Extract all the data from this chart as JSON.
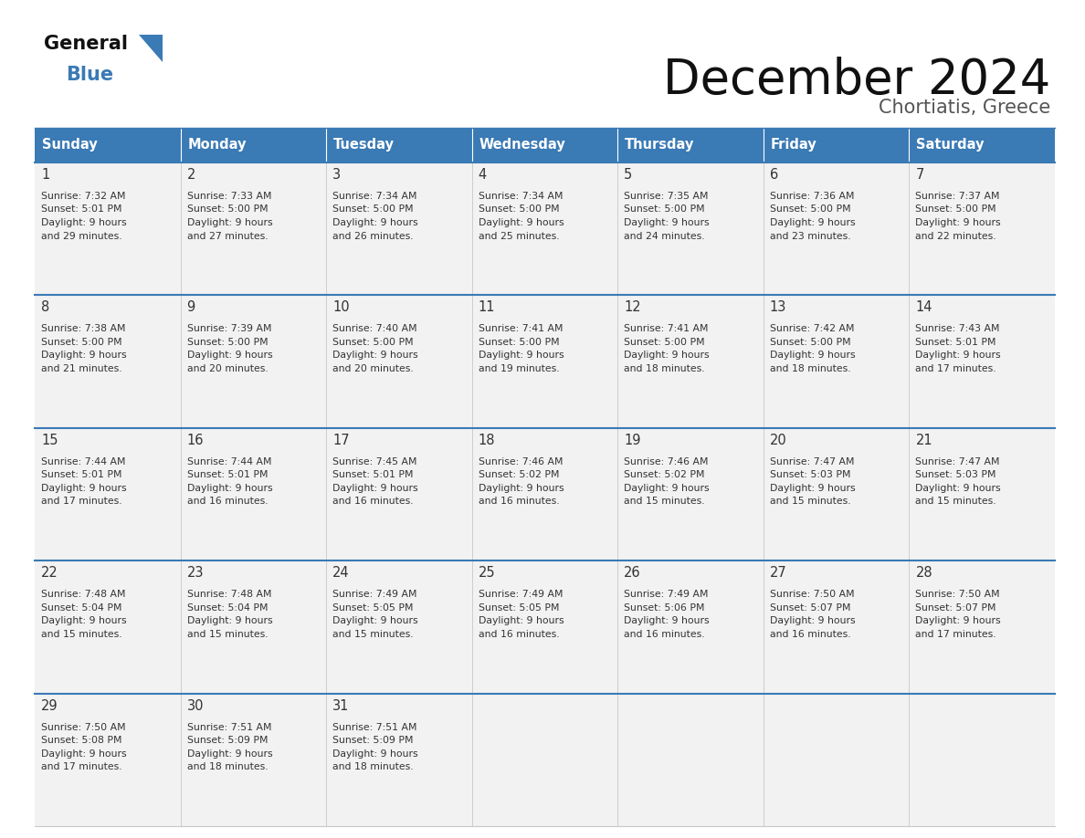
{
  "title": "December 2024",
  "subtitle": "Chortiatis, Greece",
  "header_color": "#3a7ab5",
  "header_text_color": "#ffffff",
  "day_names": [
    "Sunday",
    "Monday",
    "Tuesday",
    "Wednesday",
    "Thursday",
    "Friday",
    "Saturday"
  ],
  "cell_bg_color": "#f2f2f2",
  "divider_color": "#3a7ab5",
  "day_number_color": "#333333",
  "text_color": "#333333",
  "logo_general_color": "#1a1a1a",
  "logo_blue_color": "#3a7ab5",
  "weeks": [
    [
      {
        "day": 1,
        "sunrise": "7:32 AM",
        "sunset": "5:01 PM",
        "daylight_hrs": 9,
        "daylight_min": 29
      },
      {
        "day": 2,
        "sunrise": "7:33 AM",
        "sunset": "5:00 PM",
        "daylight_hrs": 9,
        "daylight_min": 27
      },
      {
        "day": 3,
        "sunrise": "7:34 AM",
        "sunset": "5:00 PM",
        "daylight_hrs": 9,
        "daylight_min": 26
      },
      {
        "day": 4,
        "sunrise": "7:34 AM",
        "sunset": "5:00 PM",
        "daylight_hrs": 9,
        "daylight_min": 25
      },
      {
        "day": 5,
        "sunrise": "7:35 AM",
        "sunset": "5:00 PM",
        "daylight_hrs": 9,
        "daylight_min": 24
      },
      {
        "day": 6,
        "sunrise": "7:36 AM",
        "sunset": "5:00 PM",
        "daylight_hrs": 9,
        "daylight_min": 23
      },
      {
        "day": 7,
        "sunrise": "7:37 AM",
        "sunset": "5:00 PM",
        "daylight_hrs": 9,
        "daylight_min": 22
      }
    ],
    [
      {
        "day": 8,
        "sunrise": "7:38 AM",
        "sunset": "5:00 PM",
        "daylight_hrs": 9,
        "daylight_min": 21
      },
      {
        "day": 9,
        "sunrise": "7:39 AM",
        "sunset": "5:00 PM",
        "daylight_hrs": 9,
        "daylight_min": 20
      },
      {
        "day": 10,
        "sunrise": "7:40 AM",
        "sunset": "5:00 PM",
        "daylight_hrs": 9,
        "daylight_min": 20
      },
      {
        "day": 11,
        "sunrise": "7:41 AM",
        "sunset": "5:00 PM",
        "daylight_hrs": 9,
        "daylight_min": 19
      },
      {
        "day": 12,
        "sunrise": "7:41 AM",
        "sunset": "5:00 PM",
        "daylight_hrs": 9,
        "daylight_min": 18
      },
      {
        "day": 13,
        "sunrise": "7:42 AM",
        "sunset": "5:00 PM",
        "daylight_hrs": 9,
        "daylight_min": 18
      },
      {
        "day": 14,
        "sunrise": "7:43 AM",
        "sunset": "5:01 PM",
        "daylight_hrs": 9,
        "daylight_min": 17
      }
    ],
    [
      {
        "day": 15,
        "sunrise": "7:44 AM",
        "sunset": "5:01 PM",
        "daylight_hrs": 9,
        "daylight_min": 17
      },
      {
        "day": 16,
        "sunrise": "7:44 AM",
        "sunset": "5:01 PM",
        "daylight_hrs": 9,
        "daylight_min": 16
      },
      {
        "day": 17,
        "sunrise": "7:45 AM",
        "sunset": "5:01 PM",
        "daylight_hrs": 9,
        "daylight_min": 16
      },
      {
        "day": 18,
        "sunrise": "7:46 AM",
        "sunset": "5:02 PM",
        "daylight_hrs": 9,
        "daylight_min": 16
      },
      {
        "day": 19,
        "sunrise": "7:46 AM",
        "sunset": "5:02 PM",
        "daylight_hrs": 9,
        "daylight_min": 15
      },
      {
        "day": 20,
        "sunrise": "7:47 AM",
        "sunset": "5:03 PM",
        "daylight_hrs": 9,
        "daylight_min": 15
      },
      {
        "day": 21,
        "sunrise": "7:47 AM",
        "sunset": "5:03 PM",
        "daylight_hrs": 9,
        "daylight_min": 15
      }
    ],
    [
      {
        "day": 22,
        "sunrise": "7:48 AM",
        "sunset": "5:04 PM",
        "daylight_hrs": 9,
        "daylight_min": 15
      },
      {
        "day": 23,
        "sunrise": "7:48 AM",
        "sunset": "5:04 PM",
        "daylight_hrs": 9,
        "daylight_min": 15
      },
      {
        "day": 24,
        "sunrise": "7:49 AM",
        "sunset": "5:05 PM",
        "daylight_hrs": 9,
        "daylight_min": 15
      },
      {
        "day": 25,
        "sunrise": "7:49 AM",
        "sunset": "5:05 PM",
        "daylight_hrs": 9,
        "daylight_min": 16
      },
      {
        "day": 26,
        "sunrise": "7:49 AM",
        "sunset": "5:06 PM",
        "daylight_hrs": 9,
        "daylight_min": 16
      },
      {
        "day": 27,
        "sunrise": "7:50 AM",
        "sunset": "5:07 PM",
        "daylight_hrs": 9,
        "daylight_min": 16
      },
      {
        "day": 28,
        "sunrise": "7:50 AM",
        "sunset": "5:07 PM",
        "daylight_hrs": 9,
        "daylight_min": 17
      }
    ],
    [
      {
        "day": 29,
        "sunrise": "7:50 AM",
        "sunset": "5:08 PM",
        "daylight_hrs": 9,
        "daylight_min": 17
      },
      {
        "day": 30,
        "sunrise": "7:51 AM",
        "sunset": "5:09 PM",
        "daylight_hrs": 9,
        "daylight_min": 18
      },
      {
        "day": 31,
        "sunrise": "7:51 AM",
        "sunset": "5:09 PM",
        "daylight_hrs": 9,
        "daylight_min": 18
      },
      null,
      null,
      null,
      null
    ]
  ]
}
